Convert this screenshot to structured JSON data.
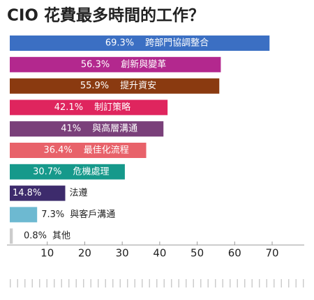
{
  "chart_data": {
    "type": "bar",
    "orientation": "horizontal",
    "title": "CIO 花費最多時間的工作？",
    "categories": [
      "跨部門協調整合",
      "創新與變革",
      "提升資安",
      "制訂策略",
      "與高層溝通",
      "最佳化流程",
      "危機處理",
      "法遵",
      "與客戶溝通",
      "其他"
    ],
    "values": [
      69.3,
      56.3,
      55.9,
      42.1,
      41,
      36.4,
      30.7,
      14.8,
      7.3,
      0.8
    ],
    "value_labels": [
      "69.3%",
      "56.3%",
      "55.9%",
      "42.1%",
      "41%",
      "36.4%",
      "30.7%",
      "14.8%",
      "7.3%",
      "0.8%"
    ],
    "colors": [
      "#3b6fc3",
      "#b3288e",
      "#8a3a10",
      "#df255e",
      "#7a407a",
      "#e8626a",
      "#16998b",
      "#3d2b6c",
      "#6db9d1",
      "#cccccc"
    ],
    "xlim": [
      0,
      78
    ],
    "xticks": [
      10,
      20,
      30,
      40,
      50,
      60,
      70
    ]
  }
}
